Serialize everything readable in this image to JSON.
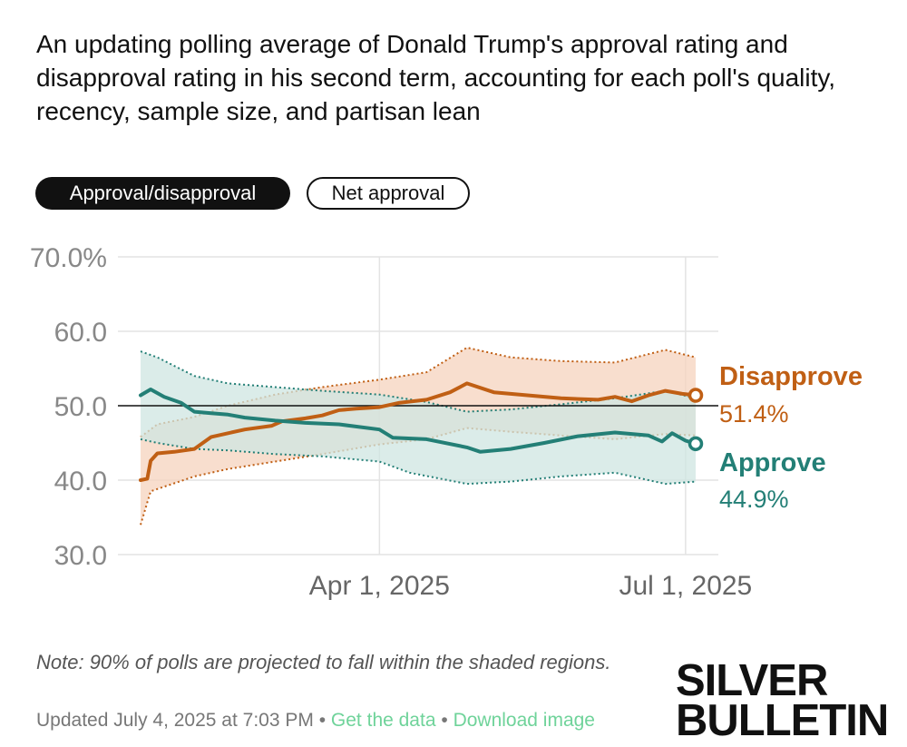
{
  "description": "An updating polling average of Donald Trump's approval rating and disapproval rating in his second term, accounting for each poll's quality, recency, sample size, and partisan lean",
  "toggles": {
    "approval_disapproval": "Approval/disapproval",
    "net_approval": "Net approval"
  },
  "note": "Note: 90% of polls are projected to fall within the shaded regions.",
  "footer": {
    "updated": "Updated July 4, 2025 at 7:03 PM",
    "separator": "•",
    "get_data": "Get the data",
    "download_image": "Download image"
  },
  "logo": {
    "line1": "SILVER",
    "line2": "BULLETIN"
  },
  "colors": {
    "disapprove": "#c05f14",
    "approve": "#237f76",
    "disapprove_band": "#f6d3bd",
    "approve_band": "#cfe6e2",
    "grid": "#e3e3e3",
    "axis_text": "#888888"
  },
  "chart_data": {
    "type": "line",
    "x_range": [
      "2025-01-20",
      "2025-07-04"
    ],
    "ylim": [
      30,
      70
    ],
    "yticks": [
      30,
      40,
      50,
      60,
      70
    ],
    "ytick_labels": [
      "30.0",
      "40.0",
      "50.0",
      "60.0",
      "70.0%"
    ],
    "xticks": [
      "2025-04-01",
      "2025-07-01"
    ],
    "xtick_labels": [
      "Apr 1, 2025",
      "Jul 1, 2025"
    ],
    "reference_line": 50,
    "grid": true,
    "series": [
      {
        "name": "Disapprove",
        "final_label": "51.4%",
        "points": [
          [
            "2025-01-20",
            40.0
          ],
          [
            "2025-01-22",
            40.2
          ],
          [
            "2025-01-23",
            42.6
          ],
          [
            "2025-01-25",
            43.6
          ],
          [
            "2025-01-30",
            43.8
          ],
          [
            "2025-02-05",
            44.2
          ],
          [
            "2025-02-10",
            45.8
          ],
          [
            "2025-02-15",
            46.3
          ],
          [
            "2025-02-20",
            46.8
          ],
          [
            "2025-02-28",
            47.3
          ],
          [
            "2025-03-03",
            47.9
          ],
          [
            "2025-03-10",
            48.3
          ],
          [
            "2025-03-15",
            48.7
          ],
          [
            "2025-03-20",
            49.4
          ],
          [
            "2025-03-25",
            49.6
          ],
          [
            "2025-04-01",
            49.8
          ],
          [
            "2025-04-07",
            50.4
          ],
          [
            "2025-04-15",
            50.8
          ],
          [
            "2025-04-22",
            51.8
          ],
          [
            "2025-04-27",
            53.0
          ],
          [
            "2025-05-05",
            51.8
          ],
          [
            "2025-05-15",
            51.4
          ],
          [
            "2025-05-25",
            51.0
          ],
          [
            "2025-06-05",
            50.8
          ],
          [
            "2025-06-10",
            51.2
          ],
          [
            "2025-06-15",
            50.6
          ],
          [
            "2025-06-20",
            51.4
          ],
          [
            "2025-06-25",
            52.0
          ],
          [
            "2025-06-30",
            51.6
          ],
          [
            "2025-07-04",
            51.4
          ]
        ],
        "band_upper": [
          [
            "2025-01-20",
            45.8
          ],
          [
            "2025-01-25",
            47.5
          ],
          [
            "2025-02-05",
            48.5
          ],
          [
            "2025-02-15",
            50.0
          ],
          [
            "2025-03-01",
            51.5
          ],
          [
            "2025-03-15",
            52.5
          ],
          [
            "2025-04-01",
            53.5
          ],
          [
            "2025-04-15",
            54.5
          ],
          [
            "2025-04-27",
            57.8
          ],
          [
            "2025-05-10",
            56.5
          ],
          [
            "2025-05-25",
            56.0
          ],
          [
            "2025-06-10",
            55.8
          ],
          [
            "2025-06-25",
            57.5
          ],
          [
            "2025-07-04",
            56.5
          ]
        ],
        "band_lower": [
          [
            "2025-01-20",
            34.0
          ],
          [
            "2025-01-23",
            38.5
          ],
          [
            "2025-02-05",
            40.5
          ],
          [
            "2025-02-15",
            41.5
          ],
          [
            "2025-03-01",
            42.5
          ],
          [
            "2025-03-15",
            43.5
          ],
          [
            "2025-04-01",
            44.8
          ],
          [
            "2025-04-15",
            45.5
          ],
          [
            "2025-04-27",
            47.0
          ],
          [
            "2025-05-10",
            46.5
          ],
          [
            "2025-05-25",
            46.0
          ],
          [
            "2025-06-10",
            45.5
          ],
          [
            "2025-06-25",
            46.2
          ],
          [
            "2025-07-04",
            46.0
          ]
        ]
      },
      {
        "name": "Approve",
        "final_label": "44.9%",
        "points": [
          [
            "2025-01-20",
            51.4
          ],
          [
            "2025-01-23",
            52.2
          ],
          [
            "2025-01-27",
            51.2
          ],
          [
            "2025-02-01",
            50.4
          ],
          [
            "2025-02-05",
            49.2
          ],
          [
            "2025-02-10",
            49.0
          ],
          [
            "2025-02-15",
            48.8
          ],
          [
            "2025-02-20",
            48.4
          ],
          [
            "2025-03-01",
            48.0
          ],
          [
            "2025-03-10",
            47.7
          ],
          [
            "2025-03-20",
            47.5
          ],
          [
            "2025-04-01",
            46.8
          ],
          [
            "2025-04-05",
            45.7
          ],
          [
            "2025-04-15",
            45.5
          ],
          [
            "2025-04-27",
            44.4
          ],
          [
            "2025-05-01",
            43.8
          ],
          [
            "2025-05-10",
            44.2
          ],
          [
            "2025-05-20",
            45.0
          ],
          [
            "2025-05-30",
            45.9
          ],
          [
            "2025-06-10",
            46.4
          ],
          [
            "2025-06-20",
            46.0
          ],
          [
            "2025-06-24",
            45.2
          ],
          [
            "2025-06-27",
            46.3
          ],
          [
            "2025-07-01",
            45.3
          ],
          [
            "2025-07-04",
            44.9
          ]
        ],
        "band_upper": [
          [
            "2025-01-20",
            57.3
          ],
          [
            "2025-01-25",
            56.5
          ],
          [
            "2025-02-05",
            54.0
          ],
          [
            "2025-02-15",
            53.0
          ],
          [
            "2025-03-01",
            52.5
          ],
          [
            "2025-03-15",
            52.0
          ],
          [
            "2025-04-01",
            51.5
          ],
          [
            "2025-04-15",
            50.5
          ],
          [
            "2025-04-27",
            49.2
          ],
          [
            "2025-05-10",
            49.5
          ],
          [
            "2025-05-25",
            50.2
          ],
          [
            "2025-06-10",
            51.0
          ],
          [
            "2025-06-25",
            52.0
          ],
          [
            "2025-07-04",
            51.0
          ]
        ],
        "band_lower": [
          [
            "2025-01-20",
            45.5
          ],
          [
            "2025-01-25",
            45.0
          ],
          [
            "2025-02-05",
            44.2
          ],
          [
            "2025-02-15",
            44.0
          ],
          [
            "2025-03-01",
            43.5
          ],
          [
            "2025-03-15",
            43.2
          ],
          [
            "2025-04-01",
            42.5
          ],
          [
            "2025-04-10",
            41.0
          ],
          [
            "2025-04-27",
            39.5
          ],
          [
            "2025-05-10",
            39.8
          ],
          [
            "2025-05-25",
            40.5
          ],
          [
            "2025-06-10",
            41.0
          ],
          [
            "2025-06-25",
            39.5
          ],
          [
            "2025-07-04",
            39.8
          ]
        ]
      }
    ]
  }
}
